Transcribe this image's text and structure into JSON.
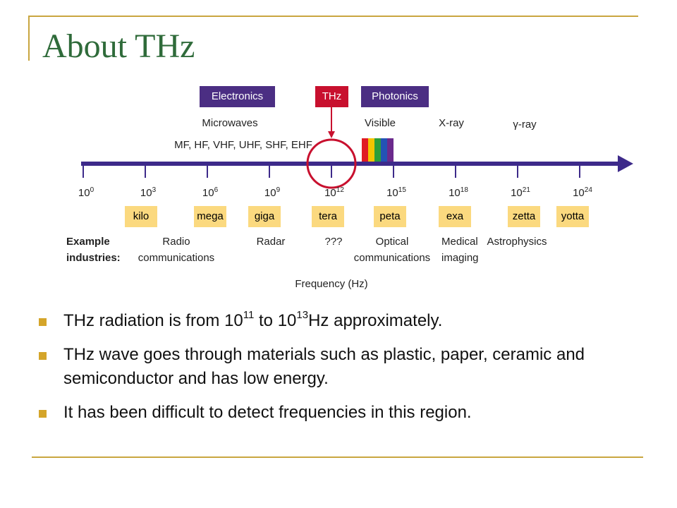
{
  "title": "About THz",
  "diagram": {
    "bands": [
      "Electronics",
      "THz",
      "Photonics"
    ],
    "regions": [
      "Microwaves",
      "MF, HF, VHF, UHF, SHF, EHF",
      "Visible",
      "X-ray",
      "γ-ray"
    ],
    "ticks": [
      {
        "base": "10",
        "exp": "0"
      },
      {
        "base": "10",
        "exp": "3"
      },
      {
        "base": "10",
        "exp": "6"
      },
      {
        "base": "10",
        "exp": "9"
      },
      {
        "base": "10",
        "exp": "12"
      },
      {
        "base": "10",
        "exp": "15"
      },
      {
        "base": "10",
        "exp": "18"
      },
      {
        "base": "10",
        "exp": "21"
      },
      {
        "base": "10",
        "exp": "24"
      }
    ],
    "prefixes": [
      "kilo",
      "mega",
      "giga",
      "tera",
      "peta",
      "exa",
      "zetta",
      "yotta"
    ],
    "industries_label": "Example industries:",
    "industries": [
      "Radio communications",
      "Radar",
      "???",
      "Optical communications",
      "Medical imaging",
      "Astrophysics"
    ],
    "axis_label": "Frequency (Hz)"
  },
  "bullets": [
    [
      {
        "text": "THz radiation is from "
      },
      {
        "text": "10"
      },
      {
        "text": "11",
        "sup": true
      },
      {
        "text": " to "
      },
      {
        "text": "10"
      },
      {
        "text": "13",
        "sup": true
      },
      {
        "text": "Hz approximately."
      }
    ],
    [
      {
        "text": "THz wave goes through materials such as plastic, paper, ceramic and semiconductor and has low energy."
      }
    ],
    [
      {
        "text": "It has been difficult to detect frequencies in this region."
      }
    ]
  ]
}
